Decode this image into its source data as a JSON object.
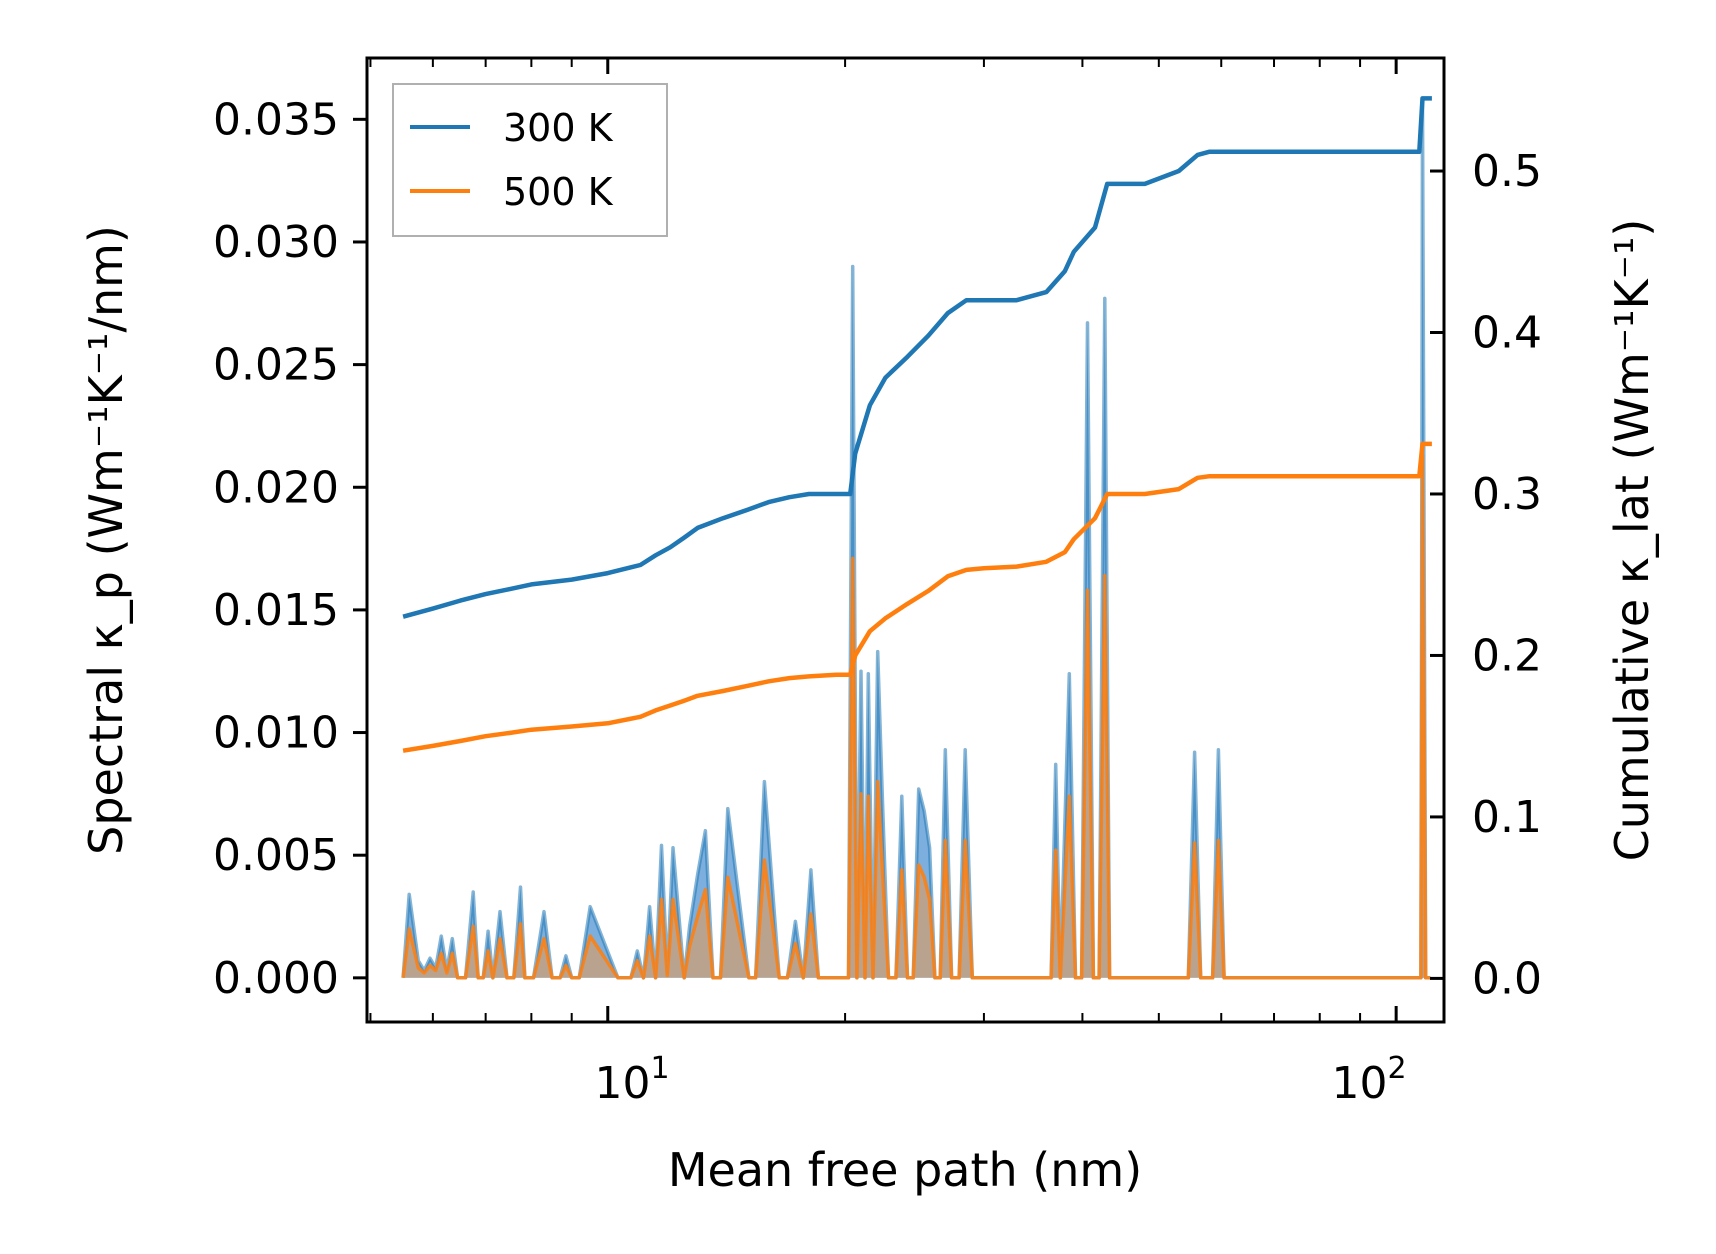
{
  "chart_data": {
    "type": "line",
    "title": "",
    "xlabel": "Mean free path (nm)",
    "ylabel_left": "Spectral κ_p (Wm⁻¹K⁻¹/nm)",
    "ylabel_right": "Cumulative κ_lat (Wm⁻¹K⁻¹)",
    "x_scale": "log",
    "xlim": [
      4.95,
      115
    ],
    "ylim_left": [
      -0.0018,
      0.0375
    ],
    "ylim_right": [
      -0.027,
      0.57
    ],
    "x_tick_labels": [
      "10",
      "1",
      "10",
      "2"
    ],
    "y_left_ticks": [
      "0.000",
      "0.005",
      "0.010",
      "0.015",
      "0.020",
      "0.025",
      "0.030",
      "0.035"
    ],
    "y_right_ticks": [
      "0.0",
      "0.1",
      "0.2",
      "0.3",
      "0.4",
      "0.5"
    ],
    "legend": {
      "location": "top-left",
      "entries": [
        "300 K",
        "500 K"
      ]
    },
    "colors": {
      "300 K": "#1f77b4",
      "500 K": "#ff7f0e",
      "fill_300": "#5b9bd5",
      "fill_500": "#c8a07c"
    },
    "cumulative_series": [
      {
        "name": "300 K",
        "x": [
          5.5,
          6.0,
          6.5,
          7.0,
          7.5,
          8.0,
          9.0,
          10.0,
          11.0,
          11.5,
          12.0,
          12.5,
          13.0,
          14.0,
          15.0,
          16.0,
          17.0,
          18.0,
          19.5,
          20.3,
          20.6,
          21.5,
          22.5,
          24.0,
          25.5,
          27.0,
          28.5,
          30.0,
          33.0,
          36.0,
          38.0,
          39.0,
          41.5,
          43.0,
          48.0,
          53.0,
          56.0,
          58.0,
          75.0,
          107.0,
          108.0,
          111.0
        ],
        "values": [
          0.224,
          0.229,
          0.234,
          0.238,
          0.241,
          0.244,
          0.247,
          0.251,
          0.256,
          0.262,
          0.267,
          0.273,
          0.279,
          0.285,
          0.29,
          0.295,
          0.298,
          0.3,
          0.3,
          0.3,
          0.325,
          0.355,
          0.372,
          0.385,
          0.398,
          0.412,
          0.42,
          0.42,
          0.42,
          0.425,
          0.438,
          0.45,
          0.465,
          0.492,
          0.492,
          0.5,
          0.51,
          0.512,
          0.512,
          0.512,
          0.545,
          0.545
        ]
      },
      {
        "name": "500 K",
        "x": [
          5.5,
          6.0,
          6.5,
          7.0,
          7.5,
          8.0,
          9.0,
          10.0,
          11.0,
          11.5,
          12.0,
          12.5,
          13.0,
          14.0,
          15.0,
          16.0,
          17.0,
          18.0,
          19.5,
          20.3,
          20.6,
          21.5,
          22.5,
          24.0,
          25.5,
          27.0,
          28.5,
          30.0,
          33.0,
          36.0,
          38.0,
          39.0,
          41.5,
          43.0,
          48.0,
          53.0,
          56.0,
          58.0,
          75.0,
          107.0,
          108.0,
          111.0
        ],
        "values": [
          0.141,
          0.144,
          0.147,
          0.15,
          0.152,
          0.154,
          0.156,
          0.158,
          0.162,
          0.166,
          0.169,
          0.172,
          0.175,
          0.178,
          0.181,
          0.184,
          0.186,
          0.187,
          0.188,
          0.188,
          0.2,
          0.215,
          0.223,
          0.232,
          0.24,
          0.249,
          0.253,
          0.254,
          0.255,
          0.258,
          0.264,
          0.272,
          0.285,
          0.3,
          0.3,
          0.303,
          0.31,
          0.311,
          0.311,
          0.311,
          0.331,
          0.331
        ]
      }
    ],
    "spectral_series": [
      {
        "name": "300 K",
        "x": [
          5.5,
          5.6,
          5.75,
          5.85,
          5.95,
          6.05,
          6.15,
          6.25,
          6.35,
          6.45,
          6.6,
          6.75,
          6.85,
          6.95,
          7.05,
          7.15,
          7.3,
          7.45,
          7.6,
          7.75,
          7.85,
          7.95,
          8.05,
          8.3,
          8.5,
          8.7,
          8.85,
          9.0,
          9.2,
          9.5,
          10.3,
          10.5,
          10.7,
          10.9,
          11.1,
          11.3,
          11.5,
          11.7,
          11.9,
          12.1,
          12.5,
          12.7,
          13.0,
          13.3,
          13.6,
          13.9,
          14.2,
          15.1,
          15.4,
          15.8,
          16.5,
          16.9,
          17.3,
          17.7,
          18.1,
          18.5,
          19.5,
          20.2,
          20.45,
          20.7,
          20.95,
          21.2,
          21.4,
          21.7,
          22.0,
          22.3,
          22.7,
          23.2,
          23.6,
          24.0,
          24.4,
          24.8,
          25.2,
          25.6,
          26.0,
          26.4,
          26.8,
          27.3,
          27.9,
          28.4,
          29.0,
          29.5,
          30.0,
          30.5,
          31.0,
          31.5,
          32.0,
          35.5,
          36.5,
          37.0,
          37.5,
          38.5,
          39.2,
          39.9,
          40.6,
          41.3,
          42.0,
          42.7,
          43.3,
          43.8,
          44.3,
          44.8,
          45.5,
          54.5,
          55.5,
          56.5,
          58.5,
          59.5,
          60.5,
          62.0,
          106.5,
          107.5,
          108.0,
          109.0,
          110.5
        ],
        "values": [
          0.0,
          0.0034,
          0.0007,
          0.0003,
          0.0008,
          0.0004,
          0.0017,
          0.0003,
          0.0016,
          0.0,
          0.0,
          0.0035,
          0.0,
          0.0,
          0.0019,
          0.0,
          0.0027,
          0.0,
          0.0,
          0.0037,
          0.0,
          0.0,
          0.0,
          0.0027,
          0.0,
          0.0,
          0.0009,
          0.0,
          0.0,
          0.0029,
          0.0,
          0.0,
          0.0,
          0.0011,
          0.0,
          0.0029,
          0.0,
          0.0054,
          0.0002,
          0.0053,
          0.0,
          0.0021,
          0.0042,
          0.006,
          0.0,
          0.0,
          0.0069,
          0.0,
          0.0,
          0.008,
          0.0,
          0.0,
          0.0023,
          0.0,
          0.0044,
          0.0,
          0.0,
          0.0,
          0.029,
          0.0,
          0.0125,
          0.0,
          0.0124,
          0.0,
          0.0133,
          0.0073,
          0.0,
          0.0,
          0.0074,
          0.0,
          0.0,
          0.0077,
          0.0068,
          0.0053,
          0.0,
          0.0,
          0.0093,
          0.0,
          0.0,
          0.0093,
          0.0,
          0.0,
          0.0,
          0.0,
          0.0,
          0.0,
          0.0,
          0.0,
          0.0,
          0.0087,
          0.0,
          0.0124,
          0.0,
          0.0,
          0.0267,
          0.0,
          0.0,
          0.0277,
          0.0,
          0.0,
          0.0,
          0.0,
          0.0,
          0.0,
          0.0092,
          0.0,
          0.0,
          0.0093,
          0.0,
          0.0,
          0.0,
          0.0,
          0.0357,
          0.0,
          0.0
        ]
      },
      {
        "name": "500 K",
        "x": [
          5.5,
          5.6,
          5.75,
          5.85,
          5.95,
          6.05,
          6.15,
          6.25,
          6.35,
          6.45,
          6.6,
          6.75,
          6.85,
          6.95,
          7.05,
          7.15,
          7.3,
          7.45,
          7.6,
          7.75,
          7.85,
          7.95,
          8.05,
          8.3,
          8.5,
          8.7,
          8.85,
          9.0,
          9.2,
          9.5,
          10.3,
          10.5,
          10.7,
          10.9,
          11.1,
          11.3,
          11.5,
          11.7,
          11.9,
          12.1,
          12.5,
          12.7,
          13.0,
          13.3,
          13.6,
          13.9,
          14.2,
          15.1,
          15.4,
          15.8,
          16.5,
          16.9,
          17.3,
          17.7,
          18.1,
          18.5,
          19.5,
          20.2,
          20.45,
          20.7,
          20.95,
          21.2,
          21.4,
          21.7,
          22.0,
          22.3,
          22.7,
          23.2,
          23.6,
          24.0,
          24.4,
          24.8,
          25.2,
          25.6,
          26.0,
          26.4,
          26.8,
          27.3,
          27.9,
          28.4,
          29.0,
          29.5,
          30.0,
          30.5,
          31.0,
          31.5,
          32.0,
          35.5,
          36.5,
          37.0,
          37.5,
          38.5,
          39.2,
          39.9,
          40.6,
          41.3,
          42.0,
          42.7,
          43.3,
          43.8,
          44.3,
          44.8,
          45.5,
          54.5,
          55.5,
          56.5,
          58.5,
          59.5,
          60.5,
          62.0,
          106.5,
          107.5,
          108.0,
          109.0,
          110.5
        ],
        "values": [
          0.0,
          0.002,
          0.0004,
          0.0002,
          0.0005,
          0.0003,
          0.001,
          0.0002,
          0.001,
          0.0,
          0.0,
          0.0021,
          0.0,
          0.0,
          0.0011,
          0.0,
          0.0016,
          0.0,
          0.0,
          0.0022,
          0.0,
          0.0,
          0.0,
          0.0016,
          0.0,
          0.0,
          0.0005,
          0.0,
          0.0,
          0.0017,
          0.0,
          0.0,
          0.0,
          0.0007,
          0.0,
          0.0017,
          0.0,
          0.0032,
          0.0001,
          0.0032,
          0.0,
          0.0013,
          0.0025,
          0.0036,
          0.0,
          0.0,
          0.0041,
          0.0,
          0.0,
          0.0048,
          0.0,
          0.0,
          0.0014,
          0.0,
          0.0026,
          0.0,
          0.0,
          0.0,
          0.0171,
          0.0,
          0.0075,
          0.0,
          0.0074,
          0.0,
          0.008,
          0.0044,
          0.0,
          0.0,
          0.0044,
          0.0,
          0.0,
          0.0046,
          0.0041,
          0.0032,
          0.0,
          0.0,
          0.0056,
          0.0,
          0.0,
          0.0056,
          0.0,
          0.0,
          0.0,
          0.0,
          0.0,
          0.0,
          0.0,
          0.0,
          0.0,
          0.0052,
          0.0,
          0.0074,
          0.0,
          0.0,
          0.0158,
          0.0,
          0.0,
          0.0164,
          0.0,
          0.0,
          0.0,
          0.0,
          0.0,
          0.0,
          0.0055,
          0.0,
          0.0,
          0.0056,
          0.0,
          0.0,
          0.0,
          0.0,
          0.0213,
          0.0,
          0.0
        ]
      }
    ]
  }
}
